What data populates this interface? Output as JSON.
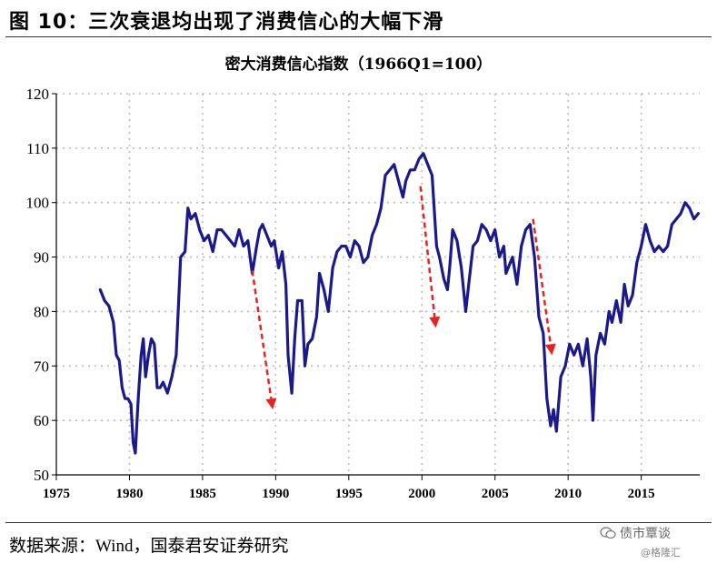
{
  "figure": {
    "title": "图 10：三次衰退均出现了消费信心的大幅下滑",
    "source": "数据来源：Wind，国泰君安证券研究",
    "watermark": "债市覃谈",
    "watermark_handle": "@格隆汇"
  },
  "chart_data": {
    "type": "line",
    "title": "密大消费信心指数（1966Q1=100）",
    "xlabel": "",
    "ylabel": "",
    "xlim": [
      1975,
      2019
    ],
    "ylim": [
      50,
      120
    ],
    "xticks": [
      1975,
      1980,
      1985,
      1990,
      1995,
      2000,
      2005,
      2010,
      2015
    ],
    "yticks": [
      50,
      60,
      70,
      80,
      90,
      100,
      110,
      120
    ],
    "grid": true,
    "legend": "none",
    "colors": {
      "line": "#1a1a8c",
      "arrows": "#e8221e",
      "grid": "#bbbbbb"
    },
    "series": [
      {
        "x": [
          1978.0,
          1978.3,
          1978.6,
          1978.9,
          1979.1,
          1979.3,
          1979.5,
          1979.7,
          1979.9,
          1980.1,
          1980.25,
          1980.4,
          1980.6,
          1980.8,
          1980.95,
          1981.1,
          1981.3,
          1981.5,
          1981.7,
          1981.9,
          1982.1,
          1982.3,
          1982.6,
          1982.9,
          1983.2,
          1983.5,
          1983.8,
          1984.0,
          1984.2,
          1984.5,
          1984.8,
          1985.1,
          1985.4,
          1985.7,
          1986.0,
          1986.3,
          1986.6,
          1986.9,
          1987.2,
          1987.5,
          1987.8,
          1988.1,
          1988.4,
          1988.7,
          1988.9,
          1989.1,
          1989.4,
          1989.7,
          1989.9,
          1990.2,
          1990.45,
          1990.7,
          1990.85,
          1991.1,
          1991.3,
          1991.5,
          1991.8,
          1992.0,
          1992.2,
          1992.5,
          1992.8,
          1993.0,
          1993.3,
          1993.6,
          1993.9,
          1994.2,
          1994.5,
          1994.8,
          1995.1,
          1995.4,
          1995.7,
          1996.0,
          1996.3,
          1996.6,
          1996.9,
          1997.2,
          1997.5,
          1997.8,
          1998.1,
          1998.4,
          1998.7,
          1998.9,
          1999.2,
          1999.5,
          1999.8,
          2000.1,
          2000.4,
          2000.7,
          2001.0,
          2001.2,
          2001.5,
          2001.75,
          2001.9,
          2002.1,
          2002.4,
          2002.7,
          2003.0,
          2003.2,
          2003.5,
          2003.8,
          2004.1,
          2004.4,
          2004.7,
          2005.0,
          2005.3,
          2005.6,
          2005.75,
          2005.9,
          2006.2,
          2006.5,
          2006.8,
          2007.1,
          2007.4,
          2007.7,
          2008.0,
          2008.3,
          2008.55,
          2008.8,
          2009.0,
          2009.2,
          2009.5,
          2009.8,
          2010.1,
          2010.4,
          2010.7,
          2011.0,
          2011.3,
          2011.55,
          2011.7,
          2011.9,
          2012.2,
          2012.5,
          2012.8,
          2013.0,
          2013.3,
          2013.6,
          2013.85,
          2014.1,
          2014.4,
          2014.7,
          2015.0,
          2015.3,
          2015.6,
          2015.9,
          2016.2,
          2016.5,
          2016.8,
          2017.1,
          2017.4,
          2017.7,
          2018.0,
          2018.3,
          2018.6,
          2018.9
        ],
        "y": [
          84,
          82,
          81,
          78,
          72,
          71,
          66,
          64,
          64,
          63,
          56,
          54,
          64,
          72,
          75,
          68,
          72,
          75,
          74,
          66,
          66,
          67,
          65,
          68,
          72,
          90,
          91,
          99,
          97,
          98,
          95,
          93,
          94,
          91,
          95,
          95,
          94,
          93,
          92,
          95,
          92,
          93,
          87,
          92,
          95,
          96,
          94,
          92,
          93,
          88,
          91,
          85,
          72,
          65,
          75,
          82,
          82,
          70,
          74,
          75,
          79,
          87,
          84,
          80,
          88,
          91,
          92,
          92,
          90,
          93,
          92,
          89,
          90,
          94,
          96,
          99,
          105,
          106,
          107,
          104,
          101,
          104,
          106,
          106,
          108,
          109,
          107,
          105,
          92,
          90,
          86,
          84,
          88,
          95,
          93,
          88,
          80,
          85,
          92,
          93,
          96,
          95,
          93,
          95,
          90,
          92,
          87,
          88,
          90,
          85,
          92,
          95,
          96,
          90,
          79,
          76,
          64,
          59,
          62,
          58,
          68,
          70,
          74,
          72,
          74,
          70,
          75,
          68,
          60,
          72,
          76,
          74,
          80,
          78,
          82,
          78,
          85,
          81,
          83,
          89,
          92,
          96,
          93,
          91,
          92,
          91,
          92,
          96,
          97,
          98,
          100,
          99,
          97,
          98
        ]
      }
    ],
    "annotations": [
      {
        "type": "arrow",
        "x1": 1988.4,
        "y1": 87.5,
        "x2": 1989.8,
        "y2": 62
      },
      {
        "type": "arrow",
        "x1": 1999.9,
        "y1": 103,
        "x2": 2000.95,
        "y2": 77
      },
      {
        "type": "arrow",
        "x1": 2007.6,
        "y1": 97,
        "x2": 2008.9,
        "y2": 72
      }
    ]
  }
}
